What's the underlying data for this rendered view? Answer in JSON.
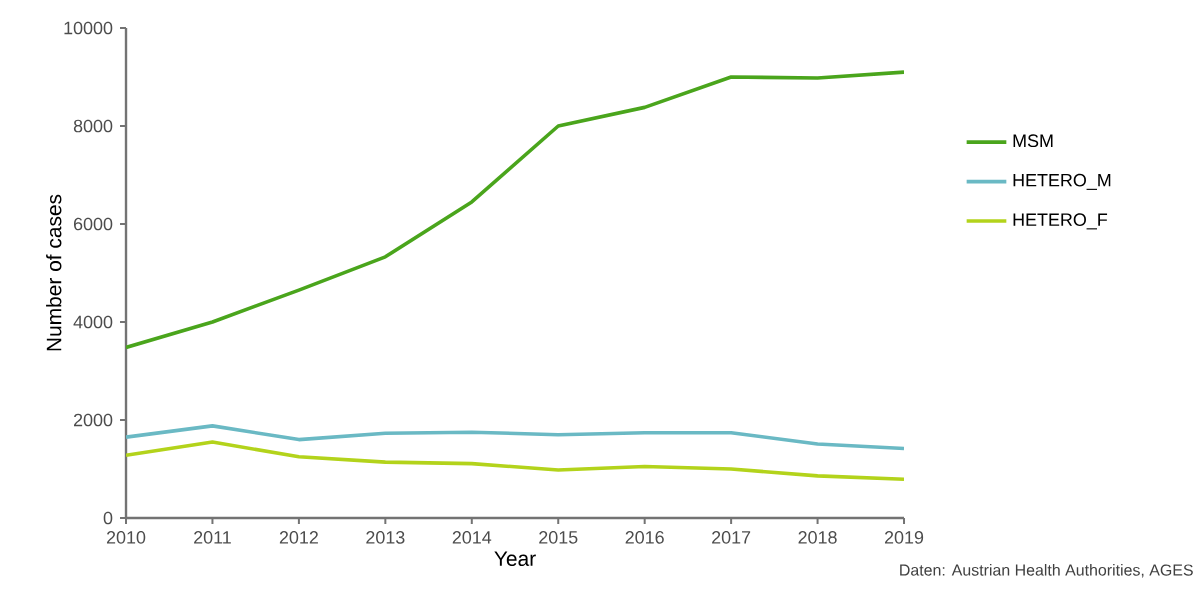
{
  "chart_data": {
    "type": "line",
    "xlabel": "Year",
    "ylabel": "Number of cases",
    "x": [
      2010,
      2011,
      2012,
      2013,
      2014,
      2015,
      2016,
      2017,
      2018,
      2019
    ],
    "series": [
      {
        "name": "MSM",
        "color": "#4aa51c",
        "values": [
          3480,
          4000,
          4650,
          5330,
          6450,
          8000,
          8380,
          9000,
          8980,
          9100
        ]
      },
      {
        "name": "HETERO_M",
        "color": "#6ab9c4",
        "values": [
          1650,
          1880,
          1600,
          1730,
          1750,
          1700,
          1740,
          1740,
          1510,
          1420
        ]
      },
      {
        "name": "HETERO_F",
        "color": "#b3d31b",
        "values": [
          1280,
          1550,
          1250,
          1140,
          1110,
          980,
          1050,
          1000,
          860,
          790
        ]
      }
    ],
    "xlim": [
      2010,
      2019
    ],
    "xticks": [
      2010,
      2011,
      2012,
      2013,
      2014,
      2015,
      2016,
      2017,
      2018,
      2019
    ],
    "ylim": [
      0,
      10000
    ],
    "yticks": [
      0,
      2000,
      4000,
      6000,
      8000,
      10000
    ],
    "grid": false,
    "legend": "right",
    "marker": "none",
    "line_style": "solid",
    "annotations": [
      "Daten: Austrian Health Authorities, AGES"
    ]
  }
}
